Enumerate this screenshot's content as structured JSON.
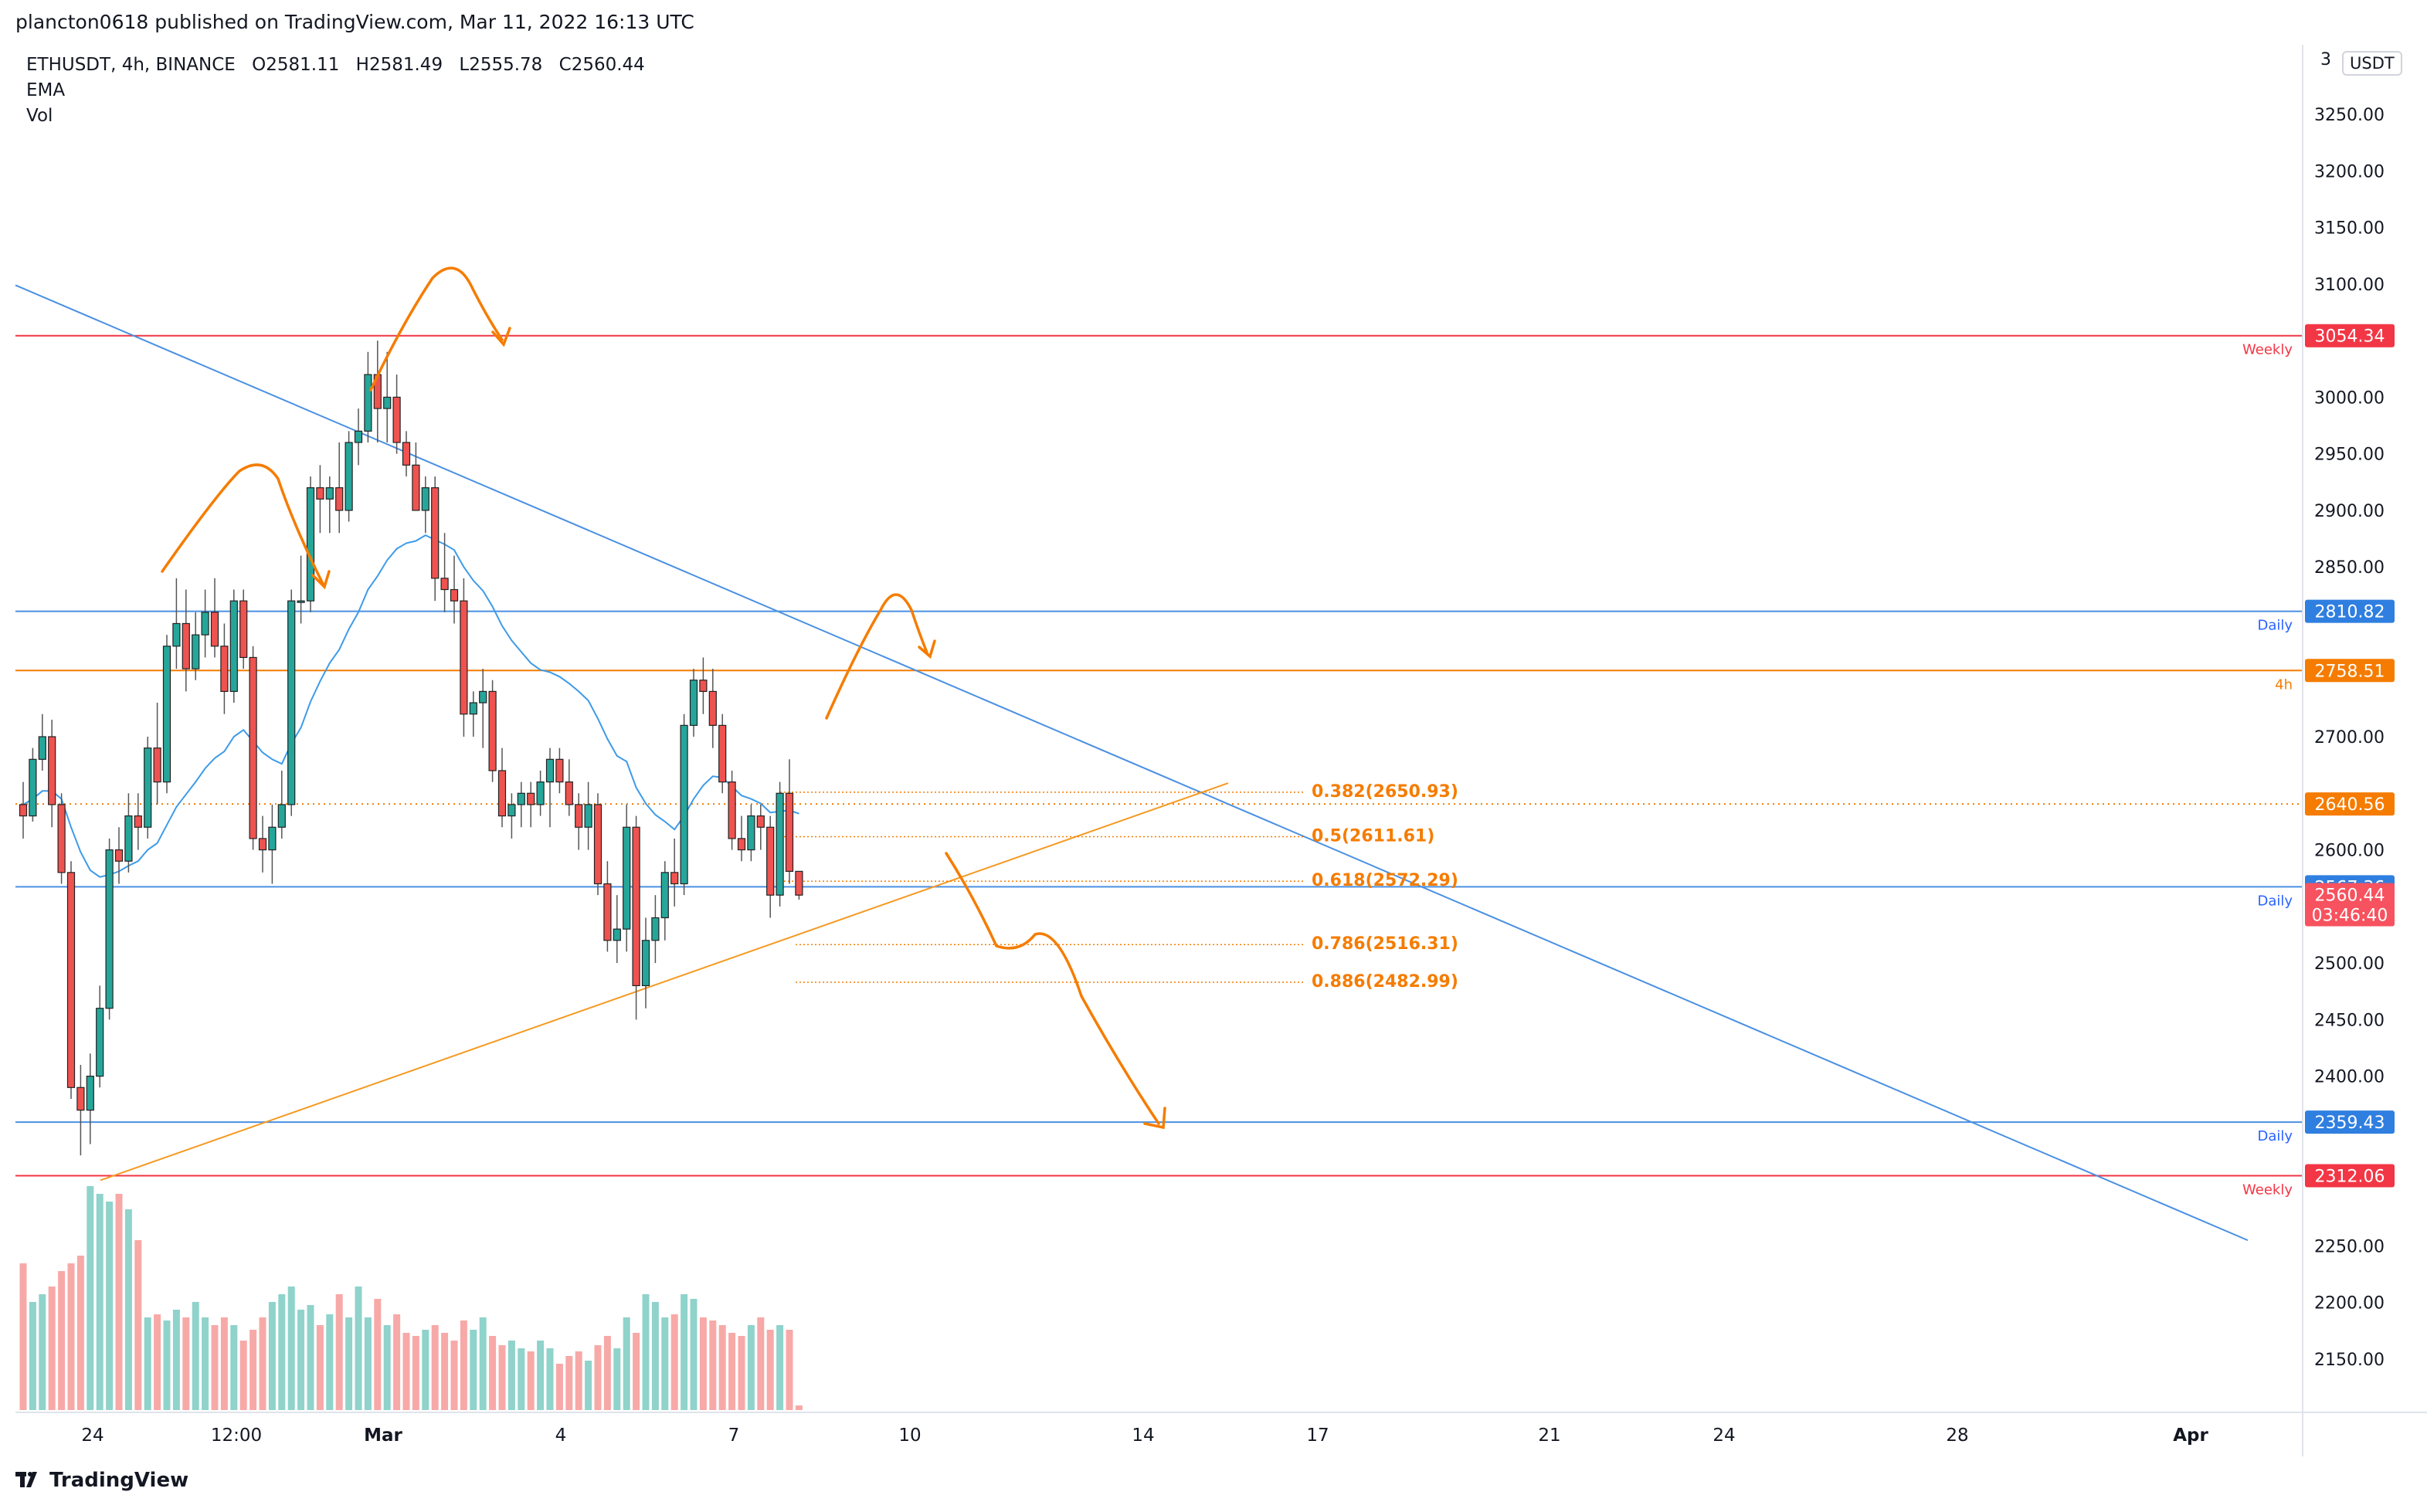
{
  "header": {
    "published_text": "plancton0618 published on TradingView.com, Mar 11, 2022 16:13 UTC"
  },
  "legend": {
    "symbol_line": "ETHUSDT, 4h, BINANCE",
    "open": "O2581.11",
    "high": "H2581.49",
    "low": "L2555.78",
    "close": "C2560.44",
    "indicator_1": "EMA",
    "indicator_2": "Vol"
  },
  "price_axis": {
    "currency_button": "USDT",
    "top_partial_label": "3",
    "ticks": [
      "3250.00",
      "3200.00",
      "3150.00",
      "3100.00",
      "3000.00",
      "2950.00",
      "2900.00",
      "2850.00",
      "2700.00",
      "2600.00",
      "2500.00",
      "2450.00",
      "2400.00",
      "2250.00",
      "2200.00",
      "2150.00"
    ],
    "tick_values": [
      3250,
      3200,
      3150,
      3100,
      3000,
      2950,
      2900,
      2850,
      2700,
      2600,
      2500,
      2450,
      2400,
      2250,
      2200,
      2150
    ]
  },
  "time_axis": {
    "labels": [
      "24",
      "12:00",
      "Mar",
      "4",
      "7",
      "10",
      "14",
      "17",
      "21",
      "24",
      "28",
      "Apr"
    ]
  },
  "levels": [
    {
      "value": 3054.34,
      "label": "3054.34",
      "tag": "Weekly",
      "color": "#f23645"
    },
    {
      "value": 2810.82,
      "label": "2810.82",
      "tag": "Daily",
      "color": "#2962ff"
    },
    {
      "value": 2758.51,
      "label": "2758.51",
      "tag": "4h",
      "color": "#f57c00"
    },
    {
      "value": 2567.36,
      "label": "2567.36",
      "tag": "Daily",
      "color": "#2962ff"
    },
    {
      "value": 2359.43,
      "label": "2359.43",
      "tag": "Daily",
      "color": "#2962ff"
    },
    {
      "value": 2312.06,
      "label": "2312.06",
      "tag": "Weekly",
      "color": "#f23645"
    }
  ],
  "extra_price_labels": [
    {
      "value": 2640.56,
      "label": "2640.56",
      "color": "#f57c00"
    },
    {
      "value": 2560.44,
      "label": "2560.44",
      "sub": "03:46:40",
      "color": "#f7525f"
    }
  ],
  "fib_levels": [
    {
      "value": 2650.93,
      "label": "0.382(2650.93)"
    },
    {
      "value": 2611.61,
      "label": "0.5(2611.61)"
    },
    {
      "value": 2572.29,
      "label": "0.618(2572.29)"
    },
    {
      "value": 2516.31,
      "label": "0.786(2516.31)"
    },
    {
      "value": 2482.99,
      "label": "0.886(2482.99)"
    }
  ],
  "chart_data": {
    "type": "candlestick",
    "symbol": "ETHUSDT",
    "interval": "4h",
    "exchange": "BINANCE",
    "y_range": [
      2100,
      3290
    ],
    "candles": [
      [
        2640,
        2660,
        2610,
        2630
      ],
      [
        2630,
        2690,
        2625,
        2680
      ],
      [
        2680,
        2720,
        2670,
        2700
      ],
      [
        2700,
        2715,
        2620,
        2640
      ],
      [
        2640,
        2650,
        2570,
        2580
      ],
      [
        2580,
        2590,
        2380,
        2390
      ],
      [
        2390,
        2410,
        2330,
        2370
      ],
      [
        2370,
        2420,
        2340,
        2400
      ],
      [
        2400,
        2480,
        2390,
        2460
      ],
      [
        2460,
        2610,
        2450,
        2600
      ],
      [
        2600,
        2620,
        2570,
        2590
      ],
      [
        2590,
        2650,
        2580,
        2630
      ],
      [
        2630,
        2650,
        2600,
        2620
      ],
      [
        2620,
        2700,
        2610,
        2690
      ],
      [
        2690,
        2730,
        2640,
        2660
      ],
      [
        2660,
        2790,
        2650,
        2780
      ],
      [
        2780,
        2840,
        2760,
        2800
      ],
      [
        2800,
        2830,
        2740,
        2760
      ],
      [
        2760,
        2810,
        2750,
        2790
      ],
      [
        2790,
        2830,
        2770,
        2810
      ],
      [
        2810,
        2840,
        2770,
        2780
      ],
      [
        2780,
        2800,
        2720,
        2740
      ],
      [
        2740,
        2830,
        2730,
        2820
      ],
      [
        2820,
        2830,
        2760,
        2770
      ],
      [
        2770,
        2780,
        2600,
        2610
      ],
      [
        2610,
        2630,
        2580,
        2600
      ],
      [
        2600,
        2640,
        2570,
        2620
      ],
      [
        2620,
        2670,
        2610,
        2640
      ],
      [
        2640,
        2830,
        2630,
        2820
      ],
      [
        2820,
        2860,
        2800,
        2820
      ],
      [
        2820,
        2930,
        2810,
        2920
      ],
      [
        2920,
        2940,
        2880,
        2910
      ],
      [
        2910,
        2930,
        2880,
        2920
      ],
      [
        2920,
        2960,
        2880,
        2900
      ],
      [
        2900,
        2970,
        2890,
        2960
      ],
      [
        2960,
        2990,
        2940,
        2970
      ],
      [
        2970,
        3040,
        2960,
        3020
      ],
      [
        3020,
        3050,
        2960,
        2990
      ],
      [
        2990,
        3040,
        2960,
        3000
      ],
      [
        3000,
        3020,
        2950,
        2960
      ],
      [
        2960,
        2970,
        2930,
        2940
      ],
      [
        2940,
        2960,
        2900,
        2900
      ],
      [
        2900,
        2930,
        2880,
        2920
      ],
      [
        2920,
        2930,
        2820,
        2840
      ],
      [
        2840,
        2880,
        2810,
        2830
      ],
      [
        2830,
        2860,
        2800,
        2820
      ],
      [
        2820,
        2840,
        2700,
        2720
      ],
      [
        2720,
        2740,
        2700,
        2730
      ],
      [
        2730,
        2760,
        2690,
        2740
      ],
      [
        2740,
        2750,
        2660,
        2670
      ],
      [
        2670,
        2690,
        2620,
        2630
      ],
      [
        2630,
        2650,
        2610,
        2640
      ],
      [
        2640,
        2660,
        2620,
        2650
      ],
      [
        2650,
        2660,
        2620,
        2640
      ],
      [
        2640,
        2670,
        2630,
        2660
      ],
      [
        2660,
        2690,
        2620,
        2680
      ],
      [
        2680,
        2690,
        2650,
        2660
      ],
      [
        2660,
        2680,
        2630,
        2640
      ],
      [
        2640,
        2650,
        2600,
        2620
      ],
      [
        2620,
        2660,
        2600,
        2640
      ],
      [
        2640,
        2650,
        2560,
        2570
      ],
      [
        2570,
        2590,
        2510,
        2520
      ],
      [
        2520,
        2560,
        2500,
        2530
      ],
      [
        2530,
        2640,
        2510,
        2620
      ],
      [
        2620,
        2630,
        2450,
        2480
      ],
      [
        2480,
        2540,
        2460,
        2520
      ],
      [
        2520,
        2560,
        2500,
        2540
      ],
      [
        2540,
        2590,
        2520,
        2580
      ],
      [
        2580,
        2610,
        2550,
        2570
      ],
      [
        2570,
        2720,
        2560,
        2710
      ],
      [
        2710,
        2760,
        2700,
        2750
      ],
      [
        2750,
        2770,
        2720,
        2740
      ],
      [
        2740,
        2760,
        2690,
        2710
      ],
      [
        2710,
        2720,
        2650,
        2660
      ],
      [
        2660,
        2670,
        2600,
        2610
      ],
      [
        2610,
        2630,
        2590,
        2600
      ],
      [
        2600,
        2640,
        2590,
        2630
      ],
      [
        2630,
        2640,
        2600,
        2620
      ],
      [
        2620,
        2630,
        2540,
        2560
      ],
      [
        2560,
        2660,
        2550,
        2650
      ],
      [
        2650,
        2680,
        2570,
        2581
      ],
      [
        2581,
        2581,
        2556,
        2560
      ]
    ],
    "ema": [
      2640,
      2645,
      2652,
      2652,
      2645,
      2620,
      2598,
      2582,
      2576,
      2578,
      2581,
      2586,
      2590,
      2600,
      2606,
      2622,
      2638,
      2649,
      2660,
      2672,
      2681,
      2687,
      2700,
      2706,
      2696,
      2686,
      2680,
      2676,
      2694,
      2708,
      2731,
      2749,
      2765,
      2777,
      2795,
      2810,
      2830,
      2842,
      2856,
      2866,
      2871,
      2873,
      2878,
      2874,
      2870,
      2865,
      2850,
      2838,
      2829,
      2815,
      2798,
      2785,
      2775,
      2765,
      2759,
      2757,
      2753,
      2747,
      2740,
      2732,
      2716,
      2698,
      2683,
      2678,
      2655,
      2641,
      2631,
      2625,
      2618,
      2630,
      2645,
      2657,
      2665,
      2664,
      2656,
      2648,
      2645,
      2641,
      2633,
      2634,
      2635,
      2632
    ],
    "volume": [
      95,
      70,
      75,
      80,
      90,
      95,
      100,
      145,
      140,
      135,
      140,
      130,
      110,
      60,
      62,
      58,
      65,
      60,
      70,
      60,
      55,
      60,
      55,
      45,
      52,
      60,
      70,
      75,
      80,
      65,
      68,
      55,
      62,
      75,
      60,
      80,
      60,
      72,
      55,
      62,
      50,
      48,
      52,
      55,
      50,
      45,
      58,
      52,
      60,
      48,
      42,
      45,
      40,
      38,
      45,
      40,
      30,
      35,
      38,
      32,
      42,
      48,
      40,
      60,
      50,
      75,
      70,
      60,
      62,
      75,
      72,
      60,
      58,
      55,
      50,
      48,
      55,
      60,
      52,
      55,
      52,
      3
    ]
  }
}
